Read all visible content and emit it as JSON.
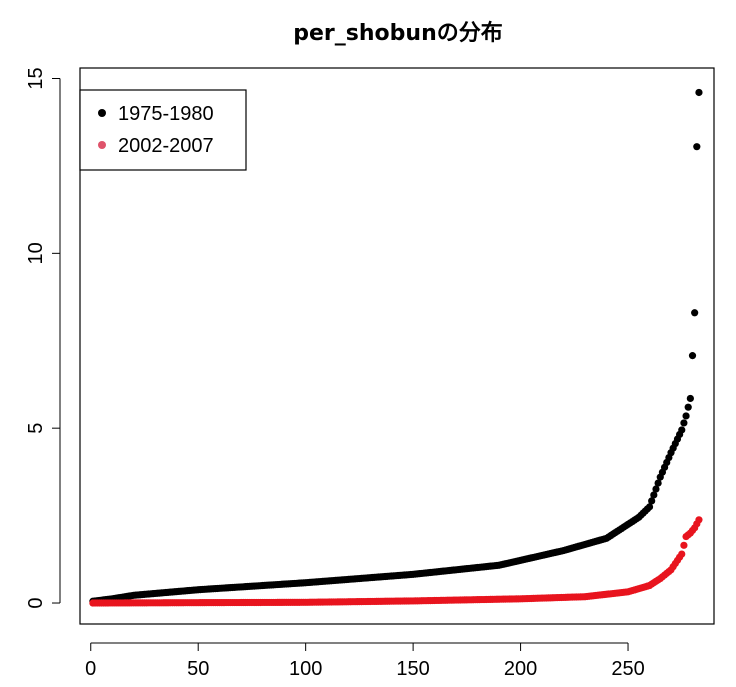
{
  "chart_data": {
    "type": "scatter",
    "title": "per_shobunの分布",
    "xlabel": "",
    "ylabel": "",
    "xlim": [
      -5,
      290
    ],
    "ylim": [
      -0.6,
      15.3
    ],
    "x_ticks": [
      0,
      50,
      100,
      150,
      200,
      250
    ],
    "y_ticks": [
      0,
      5,
      10,
      15
    ],
    "legend_position": "top-left",
    "n_points": 283,
    "series": [
      {
        "name": "1975-1980",
        "color": "#000000",
        "curve_knots_index": [
          1,
          10,
          20,
          50,
          100,
          150,
          190,
          220,
          240,
          250,
          255,
          260,
          265,
          270,
          275,
          277,
          279,
          281,
          282,
          283
        ],
        "curve_knots_value": [
          0.05,
          0.12,
          0.22,
          0.38,
          0.58,
          0.82,
          1.08,
          1.5,
          1.85,
          2.25,
          2.45,
          2.75,
          3.6,
          4.3,
          4.95,
          5.35,
          5.85,
          8.3,
          13.05,
          14.6
        ]
      },
      {
        "name": "2002-2007",
        "color": "#e8141e",
        "legend_color": "#df536b",
        "curve_knots_index": [
          1,
          50,
          100,
          150,
          200,
          230,
          250,
          260,
          265,
          270,
          275,
          277,
          279,
          281,
          283
        ],
        "curve_knots_value": [
          0.0,
          0.01,
          0.02,
          0.06,
          0.12,
          0.18,
          0.32,
          0.5,
          0.7,
          0.95,
          1.4,
          1.9,
          2.0,
          2.15,
          2.38
        ]
      }
    ]
  }
}
